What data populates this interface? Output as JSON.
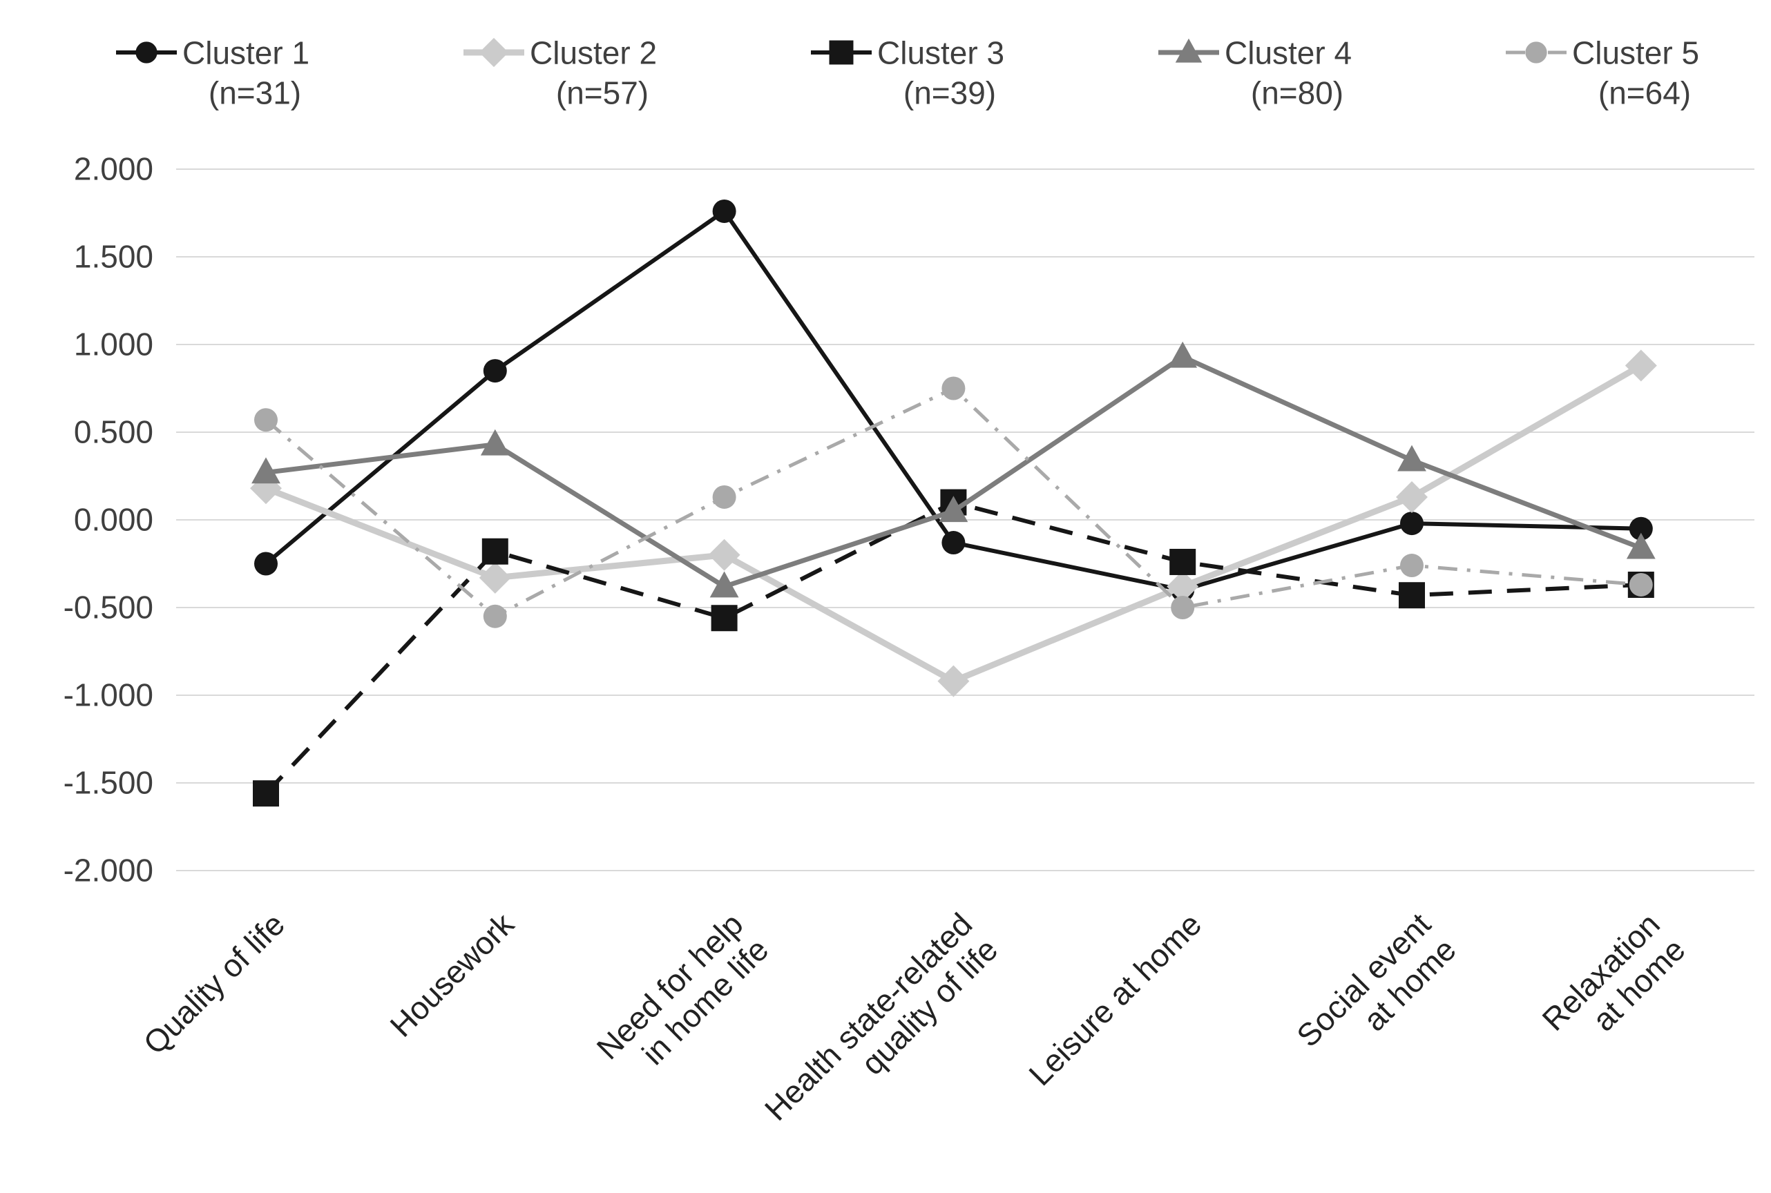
{
  "chart_data": {
    "type": "line",
    "title": "",
    "xlabel": "",
    "ylabel": "",
    "grid": true,
    "legend_position": "top",
    "categories": [
      "Quality of life",
      "Housework",
      "Need for help\nin home life",
      "Health state-related\nquality of life",
      "Leisure at home",
      "Social event\nat home",
      "Relaxation\nat home"
    ],
    "y_axis": {
      "min": -2.0,
      "max": 2.0,
      "step": 0.5,
      "tick_labels": [
        "2.000",
        "1.500",
        "1.000",
        "0.500",
        "0.000",
        "-0.500",
        "-1.000",
        "-1.500",
        "-2.000"
      ]
    },
    "series": [
      {
        "name": "Cluster 1",
        "count_label": "(n=31)",
        "marker": "circle",
        "line_style": "solid",
        "color": "#161616",
        "line_width": 6,
        "values": [
          -0.25,
          0.85,
          1.76,
          -0.13,
          -0.4,
          -0.02,
          -0.05
        ]
      },
      {
        "name": "Cluster 2",
        "count_label": "(n=57)",
        "marker": "diamond",
        "line_style": "solid",
        "color": "#cbcbcb",
        "line_width": 9,
        "values": [
          0.18,
          -0.33,
          -0.2,
          -0.92,
          -0.38,
          0.13,
          0.88
        ]
      },
      {
        "name": "Cluster 3",
        "count_label": "(n=39)",
        "marker": "square",
        "line_style": "dashed",
        "color": "#161616",
        "line_width": 6,
        "values": [
          -1.56,
          -0.18,
          -0.56,
          0.1,
          -0.24,
          -0.43,
          -0.37
        ]
      },
      {
        "name": "Cluster 4",
        "count_label": "(n=80)",
        "marker": "triangle",
        "line_style": "solid",
        "color": "#7d7d7d",
        "line_width": 7,
        "values": [
          0.27,
          0.43,
          -0.38,
          0.05,
          0.93,
          0.34,
          -0.16
        ]
      },
      {
        "name": "Cluster 5",
        "count_label": "(n=64)",
        "marker": "circle",
        "line_style": "dashdot",
        "color": "#a9a9a9",
        "line_width": 5,
        "values": [
          0.57,
          -0.55,
          0.13,
          0.75,
          -0.5,
          -0.26,
          -0.37
        ]
      }
    ],
    "colors": {
      "gridline": "#d9d9d9",
      "axis_text": "#3f3f3f",
      "category_text": "#222222",
      "background": "#ffffff"
    }
  }
}
